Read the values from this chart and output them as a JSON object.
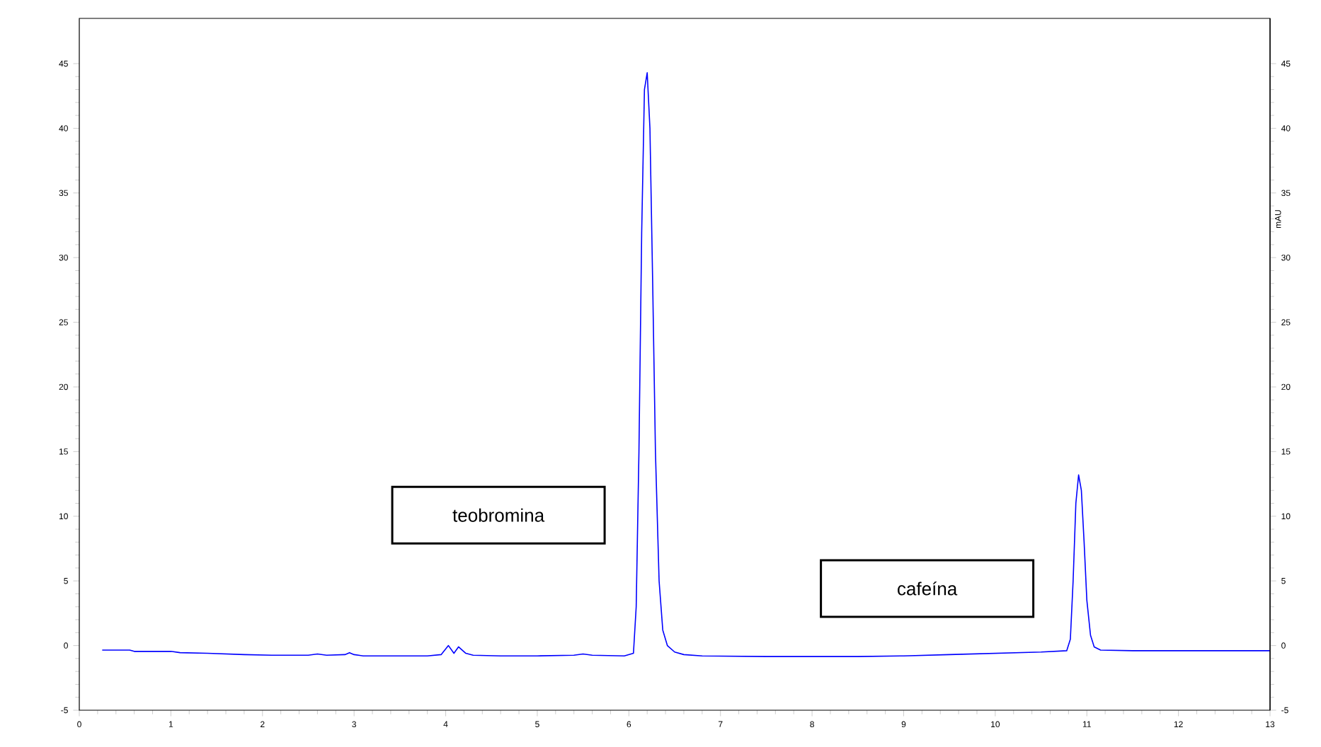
{
  "chart_data": {
    "type": "line",
    "x": [
      0.25,
      0.55,
      0.6,
      1.0,
      1.1,
      1.4,
      1.8,
      2.1,
      2.5,
      2.6,
      2.7,
      2.9,
      2.95,
      3.0,
      3.1,
      3.8,
      3.95,
      4.03,
      4.09,
      4.14,
      4.22,
      4.3,
      4.6,
      5.0,
      5.4,
      5.5,
      5.6,
      5.95,
      6.05,
      6.08,
      6.11,
      6.14,
      6.17,
      6.2,
      6.23,
      6.26,
      6.29,
      6.33,
      6.37,
      6.42,
      6.5,
      6.6,
      6.8,
      7.5,
      8.5,
      9.0,
      9.5,
      10.0,
      10.5,
      10.78,
      10.82,
      10.85,
      10.88,
      10.91,
      10.94,
      10.97,
      11.0,
      11.04,
      11.08,
      11.15,
      11.5,
      12.0,
      13.0
    ],
    "series": [
      {
        "color": "#0000ff",
        "values": [
          -0.35,
          -0.35,
          -0.45,
          -0.45,
          -0.55,
          -0.6,
          -0.7,
          -0.75,
          -0.75,
          -0.65,
          -0.75,
          -0.7,
          -0.55,
          -0.7,
          -0.8,
          -0.8,
          -0.7,
          0.0,
          -0.6,
          -0.1,
          -0.6,
          -0.75,
          -0.8,
          -0.8,
          -0.75,
          -0.65,
          -0.75,
          -0.8,
          -0.6,
          3,
          15,
          32,
          43,
          44.3,
          40,
          28,
          15,
          5,
          1.2,
          0,
          -0.5,
          -0.7,
          -0.8,
          -0.85,
          -0.85,
          -0.8,
          -0.7,
          -0.6,
          -0.5,
          -0.4,
          0.5,
          5,
          11,
          13.2,
          12,
          8,
          3.5,
          0.8,
          -0.1,
          -0.35,
          -0.4,
          -0.4,
          -0.4
        ]
      }
    ],
    "xlim": [
      0,
      13
    ],
    "xticks": [
      0,
      1,
      2,
      3,
      4,
      5,
      6,
      7,
      8,
      9,
      10,
      11,
      12,
      13
    ],
    "ylim": [
      -5,
      48.5
    ],
    "yticks": [
      -5,
      0,
      5,
      10,
      15,
      20,
      25,
      30,
      35,
      40,
      45
    ],
    "y2lim": [
      -5,
      48.5
    ],
    "y2ticks": [
      -5,
      0,
      5,
      10,
      15,
      20,
      25,
      30,
      35,
      40,
      45
    ],
    "y2label": "mAU",
    "annotations": [
      "teobromina",
      "cafeína"
    ]
  }
}
